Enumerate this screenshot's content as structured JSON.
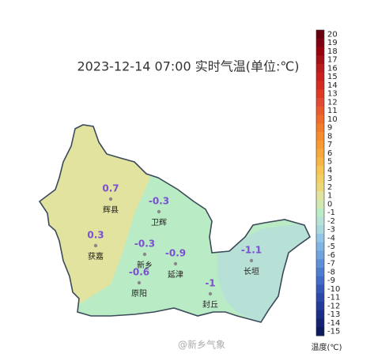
{
  "title": "2023-12-14 07:00 实时气温(单位:℃)",
  "stations": [
    {
      "name": "辉县",
      "value": 0.7
    },
    {
      "name": "获嘉",
      "value": 0.3
    },
    {
      "name": "卫辉",
      "value": -0.3
    },
    {
      "name": "新乡",
      "value": -0.3
    },
    {
      "name": "原阳",
      "value": -0.6
    },
    {
      "name": "延津",
      "value": -0.9
    },
    {
      "name": "封丘",
      "value": -1
    },
    {
      "name": "长垣",
      "value": -1.1
    }
  ],
  "colorbar": {
    "label": "温度(℃)",
    "ticks": [
      20,
      19,
      18,
      17,
      16,
      15,
      14,
      13,
      12,
      11,
      10,
      9,
      8,
      7,
      6,
      5,
      4,
      3,
      2,
      1,
      0,
      -1,
      -2,
      -3,
      -4,
      -5,
      -6,
      -7,
      -8,
      -9,
      -10,
      -11,
      -12,
      -13,
      -14,
      -15
    ],
    "colors": [
      "#67000d",
      "#7f0012",
      "#99000d",
      "#a50f15",
      "#b81b1b",
      "#cb2020",
      "#d42d20",
      "#de3a22",
      "#e34a33",
      "#ea5a2e",
      "#ef6a2b",
      "#f37b2a",
      "#f68b2c",
      "#f79a30",
      "#f8a838",
      "#f9b544",
      "#f8c453",
      "#f3cf63",
      "#ecd77a",
      "#e3e3a0",
      "#d2e8b0",
      "#b9ebc4",
      "#b7e0d6",
      "#a8d8dc",
      "#93c6e6",
      "#82b4e3",
      "#6fa2de",
      "#5e8fd8",
      "#4e7dd0",
      "#416bc6",
      "#3558b8",
      "#2b48a8",
      "#223a98",
      "#1a2d86",
      "#132272",
      "#0c1a5e"
    ]
  },
  "watermark": "@新乡气象"
}
